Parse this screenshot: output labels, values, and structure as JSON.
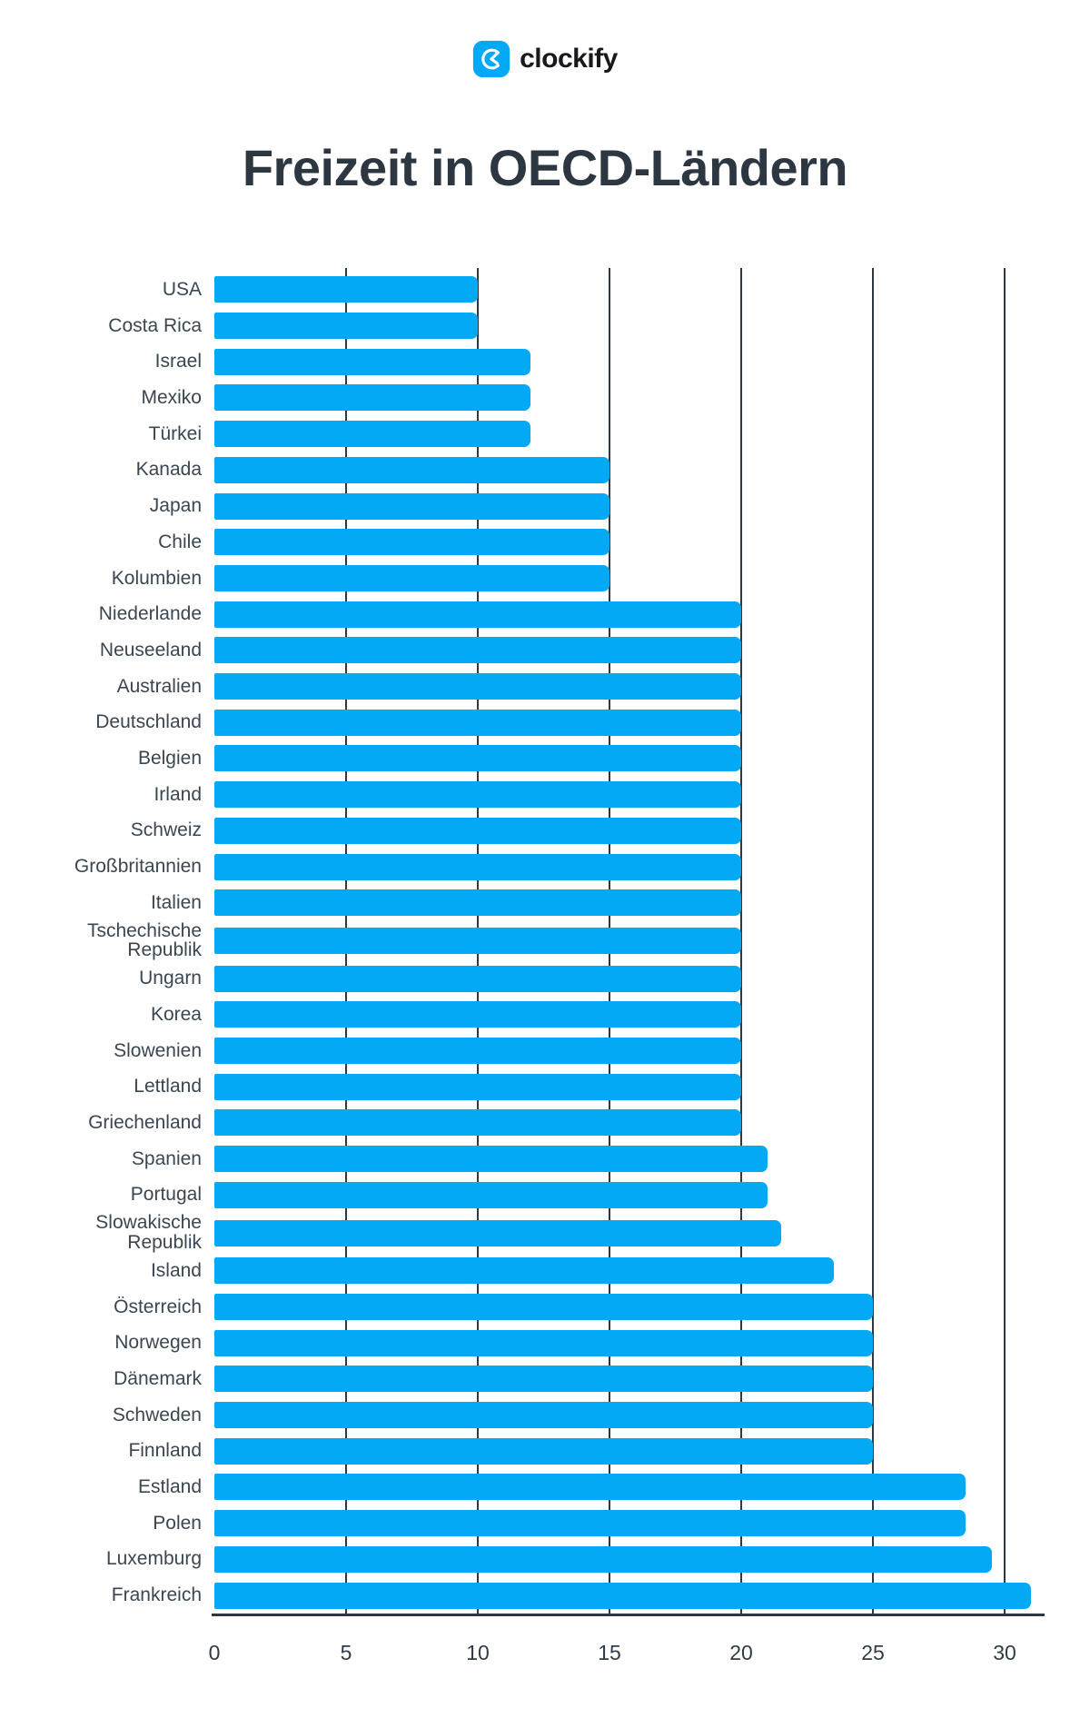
{
  "logo": {
    "brand_text": "clockify",
    "icon_name": "clockify-clock-icon",
    "icon_color": "#03A9F4"
  },
  "title": "Freizeit in OECD-Ländern",
  "chart_data": {
    "type": "bar",
    "orientation": "horizontal",
    "title": "Freizeit in OECD-Ländern",
    "categories": [
      "USA",
      "Costa Rica",
      "Israel",
      "Mexiko",
      "Türkei",
      "Kanada",
      "Japan",
      "Chile",
      "Kolumbien",
      "Niederlande",
      "Neuseeland",
      "Australien",
      "Deutschland",
      "Belgien",
      "Irland",
      "Schweiz",
      "Großbritannien",
      "Italien",
      "Tschechische Republik",
      "Ungarn",
      "Korea",
      "Slowenien",
      "Lettland",
      "Griechenland",
      "Spanien",
      "Portugal",
      "Slowakische Republik",
      "Island",
      "Österreich",
      "Norwegen",
      "Dänemark",
      "Schweden",
      "Finnland",
      "Estland",
      "Polen",
      "Luxemburg",
      "Frankreich"
    ],
    "values": [
      10,
      10,
      12,
      12,
      12,
      15,
      15,
      15,
      15,
      20,
      20,
      20,
      20,
      20,
      20,
      20,
      20,
      20,
      20,
      20,
      20,
      20,
      20,
      20,
      21,
      21,
      21.5,
      23.5,
      25,
      25,
      25,
      25,
      25,
      28.5,
      28.5,
      29.5,
      31
    ],
    "x_ticks": [
      0,
      5,
      10,
      15,
      20,
      25,
      30
    ],
    "xlim": [
      0,
      31.5
    ],
    "xlabel": "",
    "ylabel": "",
    "bar_color": "#03A9F4",
    "grid": "vertical",
    "gridline_color": "#2e3842",
    "axis_color": "#2e3842",
    "tick_label_color": "#323c46",
    "category_label_color": "#3b4651",
    "legend": "none"
  }
}
